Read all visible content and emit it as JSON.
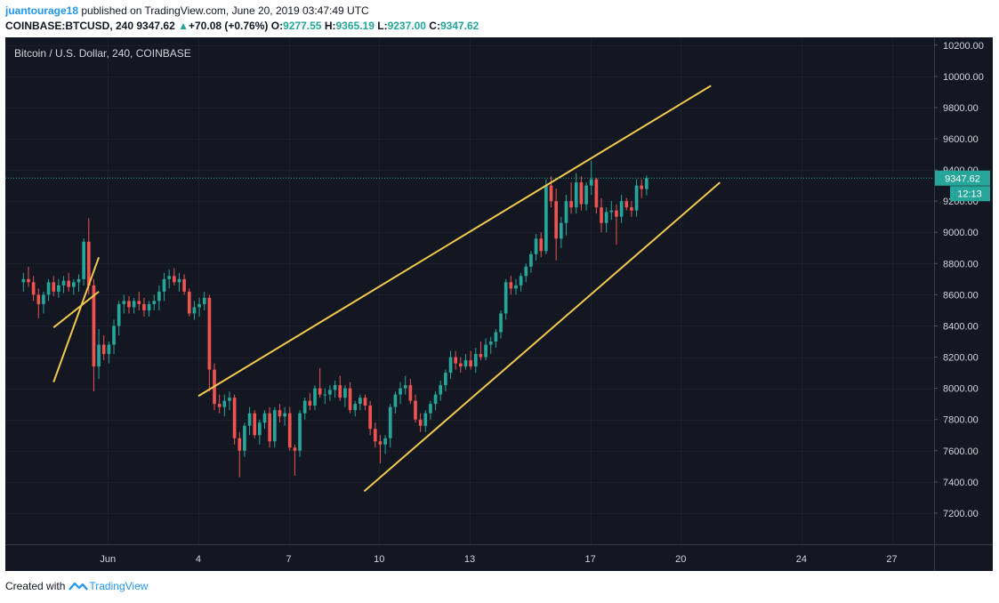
{
  "header": {
    "author": "juantourage18",
    "published_text": "published on TradingView.com, June 20, 2019 03:47:49 UTC",
    "symbol": "COINBASE:BTCUSD, 240",
    "last": "9347.62",
    "change": "+70.08 (+0.76%)",
    "open_label": "O:",
    "open": "9277.55",
    "high_label": "H:",
    "high": "9365.19",
    "low_label": "L:",
    "low": "9237.00",
    "close_label": "C:",
    "close": "9347.62"
  },
  "chart_data": {
    "type": "candlestick",
    "title": "Bitcoin / U.S. Dollar, 240, COINBASE",
    "ylim": [
      7000,
      10250
    ],
    "y_ticks": [
      "7200.00",
      "7400.00",
      "7600.00",
      "7800.00",
      "8000.00",
      "8200.00",
      "8400.00",
      "8600.00",
      "8800.00",
      "9000.00",
      "9200.00",
      "9400.00",
      "9600.00",
      "9800.00",
      "10000.00",
      "10200.00"
    ],
    "x_ticks": [
      {
        "label": "Jun",
        "day": 1
      },
      {
        "label": "4",
        "day": 4
      },
      {
        "label": "7",
        "day": 7
      },
      {
        "label": "10",
        "day": 10
      },
      {
        "label": "13",
        "day": 13
      },
      {
        "label": "17",
        "day": 17
      },
      {
        "label": "20",
        "day": 20
      },
      {
        "label": "24",
        "day": 24
      },
      {
        "label": "27",
        "day": 27
      }
    ],
    "x_range_days": [
      -2.4,
      28.4
    ],
    "last_price": 9347.62,
    "last_price_label": "9347.62",
    "countdown_label": "12:13",
    "colors": {
      "background": "#131722",
      "up": "#26a69a",
      "down": "#ef5350",
      "trendline": "#f2c94c",
      "grid": "#2a2e39",
      "text": "#d1d4dc"
    },
    "candles_per_day": 6,
    "first_candle_day": -1.8,
    "candles": [
      [
        8680,
        8740,
        8620,
        8700
      ],
      [
        8700,
        8780,
        8650,
        8680
      ],
      [
        8680,
        8720,
        8560,
        8600
      ],
      [
        8600,
        8640,
        8450,
        8540
      ],
      [
        8540,
        8620,
        8480,
        8600
      ],
      [
        8600,
        8700,
        8560,
        8680
      ],
      [
        8680,
        8720,
        8590,
        8620
      ],
      [
        8620,
        8700,
        8580,
        8660
      ],
      [
        8660,
        8720,
        8610,
        8690
      ],
      [
        8690,
        8740,
        8620,
        8650
      ],
      [
        8650,
        8700,
        8600,
        8680
      ],
      [
        8680,
        8730,
        8620,
        8700
      ],
      [
        8700,
        8960,
        8660,
        8940
      ],
      [
        8940,
        9090,
        8600,
        8660
      ],
      [
        8660,
        8700,
        7980,
        8140
      ],
      [
        8140,
        8380,
        8060,
        8280
      ],
      [
        8280,
        8340,
        8180,
        8220
      ],
      [
        8220,
        8300,
        8160,
        8280
      ],
      [
        8280,
        8440,
        8220,
        8400
      ],
      [
        8400,
        8560,
        8340,
        8540
      ],
      [
        8540,
        8600,
        8480,
        8560
      ],
      [
        8560,
        8590,
        8480,
        8520
      ],
      [
        8520,
        8580,
        8480,
        8560
      ],
      [
        8560,
        8620,
        8500,
        8540
      ],
      [
        8540,
        8580,
        8460,
        8500
      ],
      [
        8500,
        8560,
        8460,
        8540
      ],
      [
        8540,
        8600,
        8500,
        8560
      ],
      [
        8560,
        8660,
        8500,
        8620
      ],
      [
        8620,
        8740,
        8560,
        8700
      ],
      [
        8700,
        8760,
        8640,
        8720
      ],
      [
        8720,
        8770,
        8660,
        8680
      ],
      [
        8680,
        8740,
        8620,
        8700
      ],
      [
        8700,
        8730,
        8600,
        8620
      ],
      [
        8620,
        8640,
        8460,
        8480
      ],
      [
        8480,
        8560,
        8440,
        8520
      ],
      [
        8520,
        8580,
        8460,
        8540
      ],
      [
        8540,
        8620,
        8500,
        8580
      ],
      [
        8580,
        8600,
        7980,
        8120
      ],
      [
        8120,
        8160,
        7860,
        7900
      ],
      [
        7900,
        7960,
        7840,
        7880
      ],
      [
        7880,
        7960,
        7820,
        7920
      ],
      [
        7920,
        7980,
        7860,
        7940
      ],
      [
        7940,
        7960,
        7640,
        7680
      ],
      [
        7680,
        7720,
        7430,
        7600
      ],
      [
        7600,
        7780,
        7560,
        7760
      ],
      [
        7760,
        7880,
        7700,
        7840
      ],
      [
        7840,
        7860,
        7680,
        7700
      ],
      [
        7700,
        7800,
        7640,
        7780
      ],
      [
        7780,
        7860,
        7740,
        7840
      ],
      [
        7840,
        7880,
        7620,
        7660
      ],
      [
        7660,
        7880,
        7620,
        7860
      ],
      [
        7860,
        7900,
        7780,
        7820
      ],
      [
        7820,
        7880,
        7760,
        7840
      ],
      [
        7840,
        7880,
        7600,
        7620
      ],
      [
        7620,
        7640,
        7440,
        7600
      ],
      [
        7600,
        7860,
        7560,
        7840
      ],
      [
        7840,
        7940,
        7800,
        7920
      ],
      [
        7920,
        7970,
        7860,
        7890
      ],
      [
        7890,
        8020,
        7860,
        8000
      ],
      [
        8000,
        8130,
        7940,
        7960
      ],
      [
        7960,
        8000,
        7900,
        7960
      ],
      [
        7960,
        8020,
        7920,
        7990
      ],
      [
        7990,
        8050,
        7940,
        8020
      ],
      [
        8020,
        8080,
        7920,
        7940
      ],
      [
        7940,
        8020,
        7880,
        8000
      ],
      [
        8000,
        8040,
        7840,
        7860
      ],
      [
        7860,
        7920,
        7820,
        7900
      ],
      [
        7900,
        7960,
        7860,
        7940
      ],
      [
        7940,
        7960,
        7860,
        7890
      ],
      [
        7890,
        7920,
        7700,
        7740
      ],
      [
        7740,
        7780,
        7620,
        7660
      ],
      [
        7660,
        7700,
        7520,
        7640
      ],
      [
        7640,
        7700,
        7580,
        7680
      ],
      [
        7680,
        7900,
        7620,
        7880
      ],
      [
        7880,
        7980,
        7840,
        7960
      ],
      [
        7960,
        8040,
        7900,
        8000
      ],
      [
        8000,
        8080,
        7960,
        8020
      ],
      [
        8020,
        8060,
        7900,
        7920
      ],
      [
        7920,
        7960,
        7780,
        7800
      ],
      [
        7800,
        7840,
        7720,
        7760
      ],
      [
        7760,
        7860,
        7720,
        7840
      ],
      [
        7840,
        7920,
        7800,
        7900
      ],
      [
        7900,
        7980,
        7860,
        7960
      ],
      [
        7960,
        8050,
        7920,
        8020
      ],
      [
        8020,
        8120,
        7980,
        8100
      ],
      [
        8100,
        8240,
        8060,
        8200
      ],
      [
        8200,
        8240,
        8120,
        8160
      ],
      [
        8160,
        8200,
        8100,
        8140
      ],
      [
        8140,
        8220,
        8120,
        8180
      ],
      [
        8180,
        8240,
        8120,
        8140
      ],
      [
        8140,
        8260,
        8100,
        8220
      ],
      [
        8220,
        8300,
        8180,
        8200
      ],
      [
        8200,
        8320,
        8180,
        8280
      ],
      [
        8280,
        8330,
        8220,
        8300
      ],
      [
        8300,
        8380,
        8260,
        8360
      ],
      [
        8360,
        8500,
        8320,
        8480
      ],
      [
        8480,
        8700,
        8440,
        8680
      ],
      [
        8680,
        8720,
        8600,
        8640
      ],
      [
        8640,
        8700,
        8600,
        8660
      ],
      [
        8660,
        8740,
        8620,
        8720
      ],
      [
        8720,
        8800,
        8680,
        8780
      ],
      [
        8780,
        8880,
        8740,
        8860
      ],
      [
        8860,
        8990,
        8820,
        8960
      ],
      [
        8960,
        9000,
        8840,
        8880
      ],
      [
        8880,
        9340,
        8860,
        9300
      ],
      [
        9300,
        9360,
        9160,
        9200
      ],
      [
        9200,
        9280,
        8820,
        8960
      ],
      [
        8960,
        9100,
        8900,
        9060
      ],
      [
        9060,
        9240,
        8980,
        9200
      ],
      [
        9200,
        9320,
        9120,
        9160
      ],
      [
        9160,
        9380,
        9120,
        9320
      ],
      [
        9320,
        9360,
        9140,
        9180
      ],
      [
        9180,
        9320,
        9140,
        9300
      ],
      [
        9300,
        9460,
        9240,
        9340
      ],
      [
        9340,
        9350,
        9120,
        9160
      ],
      [
        9160,
        9220,
        9000,
        9060
      ],
      [
        9060,
        9160,
        9000,
        9130
      ],
      [
        9130,
        9200,
        9080,
        9140
      ],
      [
        9140,
        9180,
        8920,
        9100
      ],
      [
        9100,
        9240,
        9060,
        9200
      ],
      [
        9200,
        9220,
        9140,
        9160
      ],
      [
        9160,
        9200,
        9100,
        9140
      ],
      [
        9140,
        9340,
        9100,
        9300
      ],
      [
        9300,
        9340,
        9220,
        9277.55
      ],
      [
        9277.55,
        9365.19,
        9237,
        9347.62
      ]
    ],
    "trendlines": [
      {
        "from": [
          -0.8,
          8040
        ],
        "to": [
          0.7,
          8840
        ]
      },
      {
        "from": [
          -0.8,
          8390
        ],
        "to": [
          0.7,
          8620
        ]
      },
      {
        "from": [
          4.0,
          7950
        ],
        "to": [
          21.0,
          9940
        ]
      },
      {
        "from": [
          9.5,
          7340
        ],
        "to": [
          21.3,
          9320
        ]
      }
    ]
  }
}
